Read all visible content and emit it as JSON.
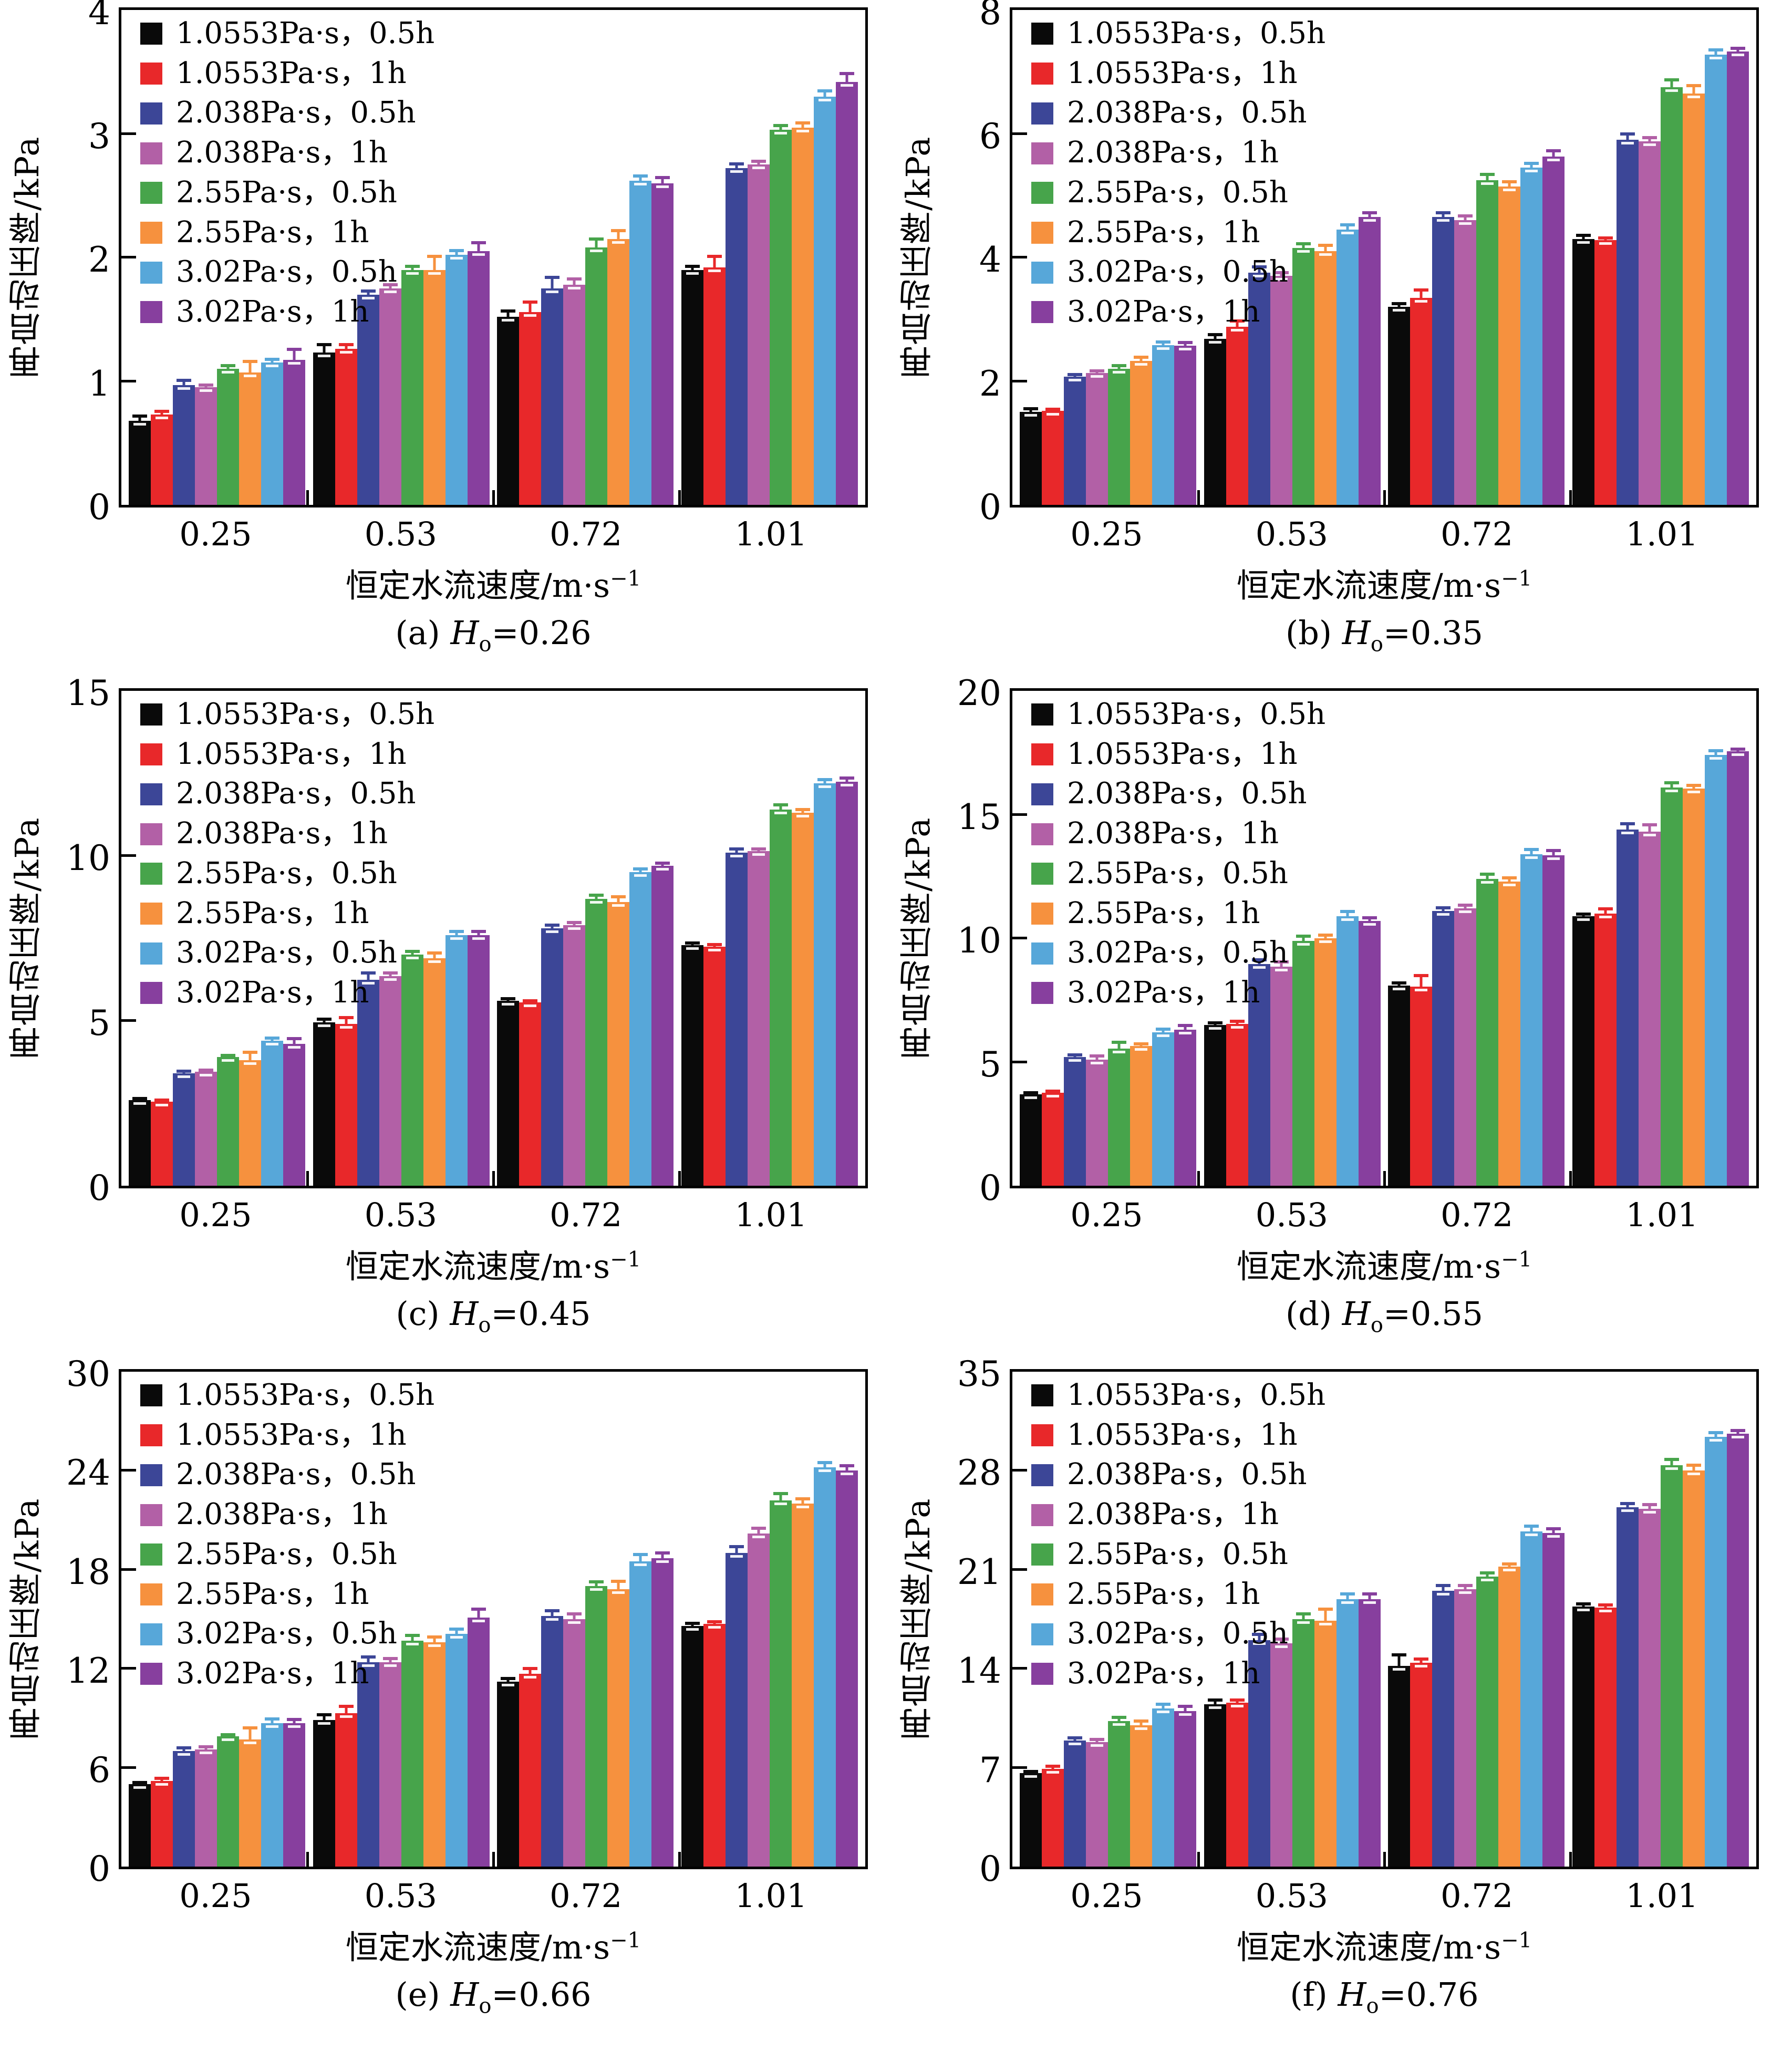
{
  "figure": {
    "background": "#ffffff",
    "categories": [
      "0.25",
      "0.53",
      "0.72",
      "1.01"
    ],
    "axes": {
      "x_title_main": "恒定水流速度/m·s",
      "x_title_sup": "−1",
      "y_title": "再启动压降/kPa"
    },
    "legend": [
      {
        "label": "1.0553Pa·s，0.5h",
        "color": "#0a0a0a"
      },
      {
        "label": "1.0553Pa·s，1h",
        "color": "#e8282a"
      },
      {
        "label": "2.038Pa·s，0.5h",
        "color": "#3c4697"
      },
      {
        "label": "2.038Pa·s，1h",
        "color": "#b260a6"
      },
      {
        "label": "2.55Pa·s，0.5h",
        "color": "#47a44b"
      },
      {
        "label": "2.55Pa·s，1h",
        "color": "#f6913e"
      },
      {
        "label": "3.02Pa·s，0.5h",
        "color": "#57a7d9"
      },
      {
        "label": "3.02Pa·s，1h",
        "color": "#873f9e"
      }
    ]
  },
  "chart_data": [
    {
      "id": "a",
      "type": "bar",
      "xlabel": "恒定水流速度/m·s⁻¹",
      "ylabel": "再启动压降/kPa",
      "caption": {
        "pre": "(a) ",
        "sym": "H",
        "sub": "o",
        "post": "=0.26"
      },
      "ylim": [
        0,
        4
      ],
      "yticks": [
        0,
        1,
        2,
        3,
        4
      ],
      "grid": false,
      "legend_position": "top-left",
      "categories": [
        "0.25",
        "0.53",
        "0.72",
        "1.01"
      ],
      "series": [
        {
          "name": "1.0553Pa·s，0.5h",
          "values": [
            0.68,
            1.23,
            1.52,
            1.9
          ],
          "errors": [
            0.05,
            0.08,
            0.06,
            0.04
          ]
        },
        {
          "name": "1.0553Pa·s，1h",
          "values": [
            0.73,
            1.26,
            1.56,
            1.92
          ],
          "errors": [
            0.04,
            0.05,
            0.09,
            0.1
          ]
        },
        {
          "name": "2.038Pa·s，0.5h",
          "values": [
            0.97,
            1.7,
            1.75,
            2.72
          ],
          "errors": [
            0.05,
            0.04,
            0.1,
            0.05
          ]
        },
        {
          "name": "2.038Pa·s，1h",
          "values": [
            0.95,
            1.75,
            1.78,
            2.75
          ],
          "errors": [
            0.03,
            0.04,
            0.06,
            0.04
          ]
        },
        {
          "name": "2.55Pa·s，0.5h",
          "values": [
            1.1,
            1.9,
            2.08,
            3.03
          ],
          "errors": [
            0.04,
            0.04,
            0.08,
            0.05
          ]
        },
        {
          "name": "2.55Pa·s，1h",
          "values": [
            1.07,
            1.9,
            2.15,
            3.05
          ],
          "errors": [
            0.1,
            0.12,
            0.08,
            0.05
          ]
        },
        {
          "name": "3.02Pa·s，0.5h",
          "values": [
            1.15,
            2.02,
            2.62,
            3.3
          ],
          "errors": [
            0.04,
            0.05,
            0.05,
            0.06
          ]
        },
        {
          "name": "3.02Pa·s，1h",
          "values": [
            1.17,
            2.05,
            2.6,
            3.42
          ],
          "errors": [
            0.1,
            0.08,
            0.06,
            0.08
          ]
        }
      ]
    },
    {
      "id": "b",
      "type": "bar",
      "xlabel": "恒定水流速度/m·s⁻¹",
      "ylabel": "再启动压降/kPa",
      "caption": {
        "pre": "(b) ",
        "sym": "H",
        "sub": "o",
        "post": "=0.35"
      },
      "ylim": [
        0,
        8
      ],
      "yticks": [
        0,
        2,
        4,
        6,
        8
      ],
      "grid": false,
      "legend_position": "top-left",
      "categories": [
        "0.25",
        "0.53",
        "0.72",
        "1.01"
      ],
      "series": [
        {
          "name": "1.0553Pa·s，0.5h",
          "values": [
            1.5,
            2.68,
            3.2,
            4.3
          ],
          "errors": [
            0.08,
            0.1,
            0.08,
            0.08
          ]
        },
        {
          "name": "1.0553Pa·s，1h",
          "values": [
            1.52,
            2.88,
            3.35,
            4.28
          ],
          "errors": [
            0.05,
            0.12,
            0.15,
            0.06
          ]
        },
        {
          "name": "2.038Pa·s，0.5h",
          "values": [
            2.07,
            3.75,
            4.65,
            5.9
          ],
          "errors": [
            0.06,
            0.12,
            0.1,
            0.12
          ]
        },
        {
          "name": "2.038Pa·s，1h",
          "values": [
            2.13,
            3.7,
            4.6,
            5.88
          ],
          "errors": [
            0.06,
            0.08,
            0.1,
            0.08
          ]
        },
        {
          "name": "2.55Pa·s，0.5h",
          "values": [
            2.2,
            4.15,
            5.25,
            6.75
          ],
          "errors": [
            0.08,
            0.1,
            0.12,
            0.15
          ]
        },
        {
          "name": "2.55Pa·s，1h",
          "values": [
            2.33,
            4.1,
            5.15,
            6.65
          ],
          "errors": [
            0.08,
            0.12,
            0.1,
            0.15
          ]
        },
        {
          "name": "3.02Pa·s，0.5h",
          "values": [
            2.58,
            4.45,
            5.45,
            7.28
          ],
          "errors": [
            0.08,
            0.1,
            0.1,
            0.1
          ]
        },
        {
          "name": "3.02Pa·s，1h",
          "values": [
            2.57,
            4.65,
            5.63,
            7.33
          ],
          "errors": [
            0.08,
            0.1,
            0.12,
            0.08
          ]
        }
      ]
    },
    {
      "id": "c",
      "type": "bar",
      "xlabel": "恒定水流速度/m·s⁻¹",
      "ylabel": "再启动压降/kPa",
      "caption": {
        "pre": "(c) ",
        "sym": "H",
        "sub": "o",
        "post": "=0.45"
      },
      "ylim": [
        0,
        15
      ],
      "yticks": [
        0,
        5,
        10,
        15
      ],
      "grid": false,
      "legend_position": "top-left",
      "categories": [
        "0.25",
        "0.53",
        "0.72",
        "1.01"
      ],
      "series": [
        {
          "name": "1.0553Pa·s，0.5h",
          "values": [
            2.6,
            4.95,
            5.6,
            7.3
          ],
          "errors": [
            0.08,
            0.15,
            0.12,
            0.1
          ]
        },
        {
          "name": "1.0553Pa·s，1h",
          "values": [
            2.55,
            4.9,
            5.55,
            7.25
          ],
          "errors": [
            0.1,
            0.25,
            0.1,
            0.1
          ]
        },
        {
          "name": "2.038Pa·s，0.5h",
          "values": [
            3.4,
            6.25,
            7.8,
            10.1
          ],
          "errors": [
            0.12,
            0.25,
            0.15,
            0.15
          ]
        },
        {
          "name": "2.038Pa·s，1h",
          "values": [
            3.45,
            6.35,
            7.9,
            10.15
          ],
          "errors": [
            0.1,
            0.15,
            0.12,
            0.1
          ]
        },
        {
          "name": "2.55Pa·s，0.5h",
          "values": [
            3.9,
            7.0,
            8.7,
            11.4
          ],
          "errors": [
            0.1,
            0.15,
            0.15,
            0.2
          ]
        },
        {
          "name": "2.55Pa·s，1h",
          "values": [
            3.8,
            6.9,
            8.6,
            11.3
          ],
          "errors": [
            0.3,
            0.2,
            0.2,
            0.15
          ]
        },
        {
          "name": "3.02Pa·s，0.5h",
          "values": [
            4.4,
            7.6,
            9.5,
            12.2
          ],
          "errors": [
            0.12,
            0.15,
            0.15,
            0.15
          ]
        },
        {
          "name": "3.02Pa·s，1h",
          "values": [
            4.3,
            7.6,
            9.7,
            12.25
          ],
          "errors": [
            0.2,
            0.15,
            0.12,
            0.15
          ]
        }
      ]
    },
    {
      "id": "d",
      "type": "bar",
      "xlabel": "恒定水流速度/m·s⁻¹",
      "ylabel": "再启动压降/kPa",
      "caption": {
        "pre": "(d) ",
        "sym": "H",
        "sub": "o",
        "post": "=0.55"
      },
      "ylim": [
        0,
        20
      ],
      "yticks": [
        0,
        5,
        10,
        15,
        20
      ],
      "grid": false,
      "legend_position": "top-left",
      "categories": [
        "0.25",
        "0.53",
        "0.72",
        "1.01"
      ],
      "series": [
        {
          "name": "1.0553Pa·s，0.5h",
          "values": [
            3.7,
            6.5,
            8.1,
            10.9
          ],
          "errors": [
            0.1,
            0.15,
            0.15,
            0.15
          ]
        },
        {
          "name": "1.0553Pa·s，1h",
          "values": [
            3.75,
            6.55,
            8.05,
            11.0
          ],
          "errors": [
            0.12,
            0.15,
            0.5,
            0.25
          ]
        },
        {
          "name": "2.038Pa·s，0.5h",
          "values": [
            5.2,
            8.95,
            11.1,
            14.4
          ],
          "errors": [
            0.15,
            0.25,
            0.2,
            0.3
          ]
        },
        {
          "name": "2.038Pa·s，1h",
          "values": [
            5.1,
            8.85,
            11.2,
            14.3
          ],
          "errors": [
            0.2,
            0.25,
            0.2,
            0.35
          ]
        },
        {
          "name": "2.55Pa·s，0.5h",
          "values": [
            5.55,
            9.9,
            12.4,
            16.1
          ],
          "errors": [
            0.3,
            0.25,
            0.25,
            0.25
          ]
        },
        {
          "name": "2.55Pa·s，1h",
          "values": [
            5.65,
            10.0,
            12.3,
            16.05
          ],
          "errors": [
            0.15,
            0.2,
            0.2,
            0.2
          ]
        },
        {
          "name": "3.02Pa·s，0.5h",
          "values": [
            6.2,
            10.9,
            13.4,
            17.4
          ],
          "errors": [
            0.2,
            0.25,
            0.25,
            0.25
          ]
        },
        {
          "name": "3.02Pa·s，1h",
          "values": [
            6.3,
            10.7,
            13.35,
            17.55
          ],
          "errors": [
            0.25,
            0.2,
            0.25,
            0.15
          ]
        }
      ]
    },
    {
      "id": "e",
      "type": "bar",
      "xlabel": "恒定水流速度/m·s⁻¹",
      "ylabel": "再启动压降/kPa",
      "caption": {
        "pre": "(e) ",
        "sym": "H",
        "sub": "o",
        "post": "=0.66"
      },
      "ylim": [
        0,
        30
      ],
      "yticks": [
        0,
        6,
        12,
        18,
        24,
        30
      ],
      "grid": false,
      "legend_position": "top-left",
      "categories": [
        "0.25",
        "0.53",
        "0.72",
        "1.01"
      ],
      "series": [
        {
          "name": "1.0553Pa·s，0.5h",
          "values": [
            5.0,
            8.9,
            11.2,
            14.6
          ],
          "errors": [
            0.2,
            0.4,
            0.3,
            0.25
          ]
        },
        {
          "name": "1.0553Pa·s，1h",
          "values": [
            5.2,
            9.3,
            11.7,
            14.7
          ],
          "errors": [
            0.25,
            0.5,
            0.4,
            0.25
          ]
        },
        {
          "name": "2.038Pa·s，0.5h",
          "values": [
            7.0,
            12.4,
            15.2,
            19.0
          ],
          "errors": [
            0.3,
            0.4,
            0.4,
            0.5
          ]
        },
        {
          "name": "2.038Pa·s，1h",
          "values": [
            7.1,
            12.4,
            15.0,
            20.2
          ],
          "errors": [
            0.25,
            0.3,
            0.4,
            0.4
          ]
        },
        {
          "name": "2.55Pa·s，0.5h",
          "values": [
            7.9,
            13.7,
            17.0,
            22.2
          ],
          "errors": [
            0.2,
            0.4,
            0.35,
            0.5
          ]
        },
        {
          "name": "2.55Pa·s，1h",
          "values": [
            7.7,
            13.6,
            16.8,
            22.0
          ],
          "errors": [
            0.8,
            0.4,
            0.6,
            0.4
          ]
        },
        {
          "name": "3.02Pa·s，0.5h",
          "values": [
            8.7,
            14.1,
            18.5,
            24.2
          ],
          "errors": [
            0.35,
            0.4,
            0.5,
            0.4
          ]
        },
        {
          "name": "3.02Pa·s，1h",
          "values": [
            8.7,
            15.1,
            18.7,
            24.0
          ],
          "errors": [
            0.3,
            0.6,
            0.4,
            0.4
          ]
        }
      ]
    },
    {
      "id": "f",
      "type": "bar",
      "xlabel": "恒定水流速度/m·s⁻¹",
      "ylabel": "再启动压降/kPa",
      "caption": {
        "pre": "(f) ",
        "sym": "H",
        "sub": "o",
        "post": "=0.76"
      },
      "ylim": [
        0,
        35
      ],
      "yticks": [
        0,
        7,
        14,
        21,
        28,
        35
      ],
      "grid": false,
      "legend_position": "top-left",
      "categories": [
        "0.25",
        "0.53",
        "0.72",
        "1.01"
      ],
      "series": [
        {
          "name": "1.0553Pa·s，0.5h",
          "values": [
            6.6,
            11.5,
            14.2,
            18.4
          ],
          "errors": [
            0.25,
            0.4,
            0.9,
            0.3
          ]
        },
        {
          "name": "1.0553Pa·s，1h",
          "values": [
            6.9,
            11.6,
            14.4,
            18.3
          ],
          "errors": [
            0.3,
            0.3,
            0.4,
            0.3
          ]
        },
        {
          "name": "2.038Pa·s，0.5h",
          "values": [
            8.9,
            16.0,
            19.5,
            25.4
          ],
          "errors": [
            0.3,
            0.55,
            0.5,
            0.4
          ]
        },
        {
          "name": "2.038Pa·s，1h",
          "values": [
            8.8,
            15.8,
            19.6,
            25.3
          ],
          "errors": [
            0.3,
            0.4,
            0.4,
            0.4
          ]
        },
        {
          "name": "2.55Pa·s，0.5h",
          "values": [
            10.3,
            17.5,
            20.5,
            28.4
          ],
          "errors": [
            0.35,
            0.5,
            0.4,
            0.5
          ]
        },
        {
          "name": "2.55Pa·s，1h",
          "values": [
            10.0,
            17.4,
            21.2,
            28.0
          ],
          "errors": [
            0.4,
            0.9,
            0.3,
            0.5
          ]
        },
        {
          "name": "3.02Pa·s，0.5h",
          "values": [
            11.2,
            18.9,
            23.7,
            30.4
          ],
          "errors": [
            0.4,
            0.5,
            0.5,
            0.4
          ]
        },
        {
          "name": "3.02Pa·s，1h",
          "values": [
            11.0,
            18.9,
            23.6,
            30.6
          ],
          "errors": [
            0.45,
            0.5,
            0.4,
            0.35
          ]
        }
      ]
    }
  ]
}
